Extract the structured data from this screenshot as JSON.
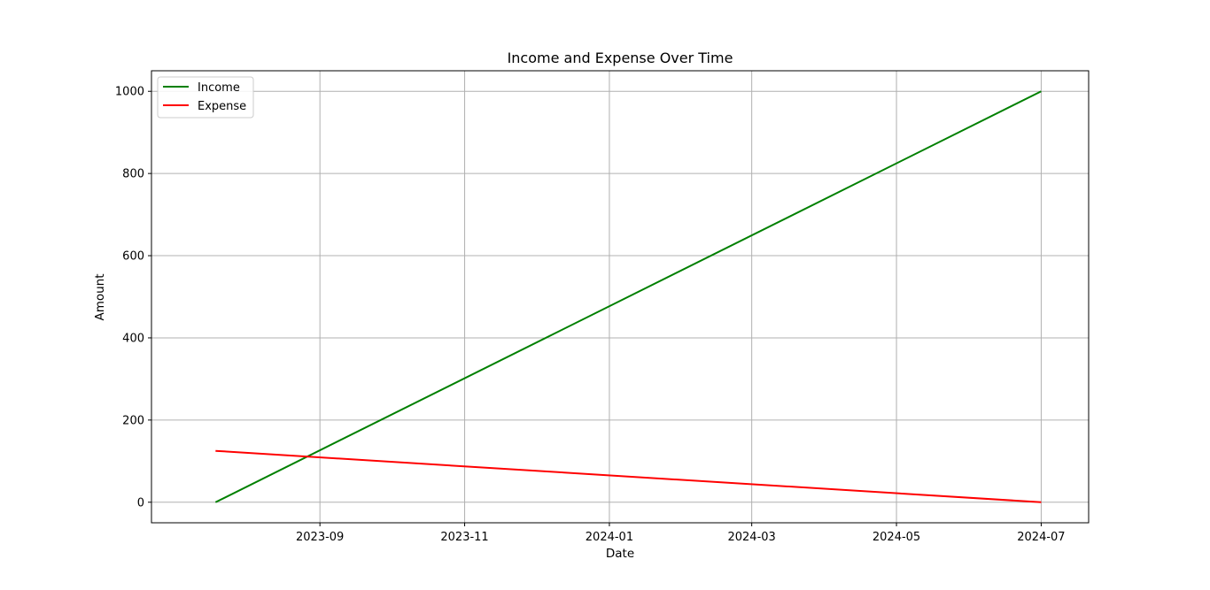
{
  "chart_data": {
    "type": "line",
    "title": "Income and Expense Over Time",
    "xlabel": "Date",
    "ylabel": "Amount",
    "x_type": "date",
    "xlim": [
      "2023-06-22",
      "2024-07-21"
    ],
    "ylim": [
      -50,
      1050
    ],
    "x": [
      "2023-07-19",
      "2024-07-01"
    ],
    "series": [
      {
        "name": "Income",
        "color": "#008000",
        "values": [
          0,
          1000
        ]
      },
      {
        "name": "Expense",
        "color": "#ff0000",
        "values": [
          125,
          0
        ]
      }
    ],
    "x_ticks": [
      {
        "date": "2023-09-01",
        "label": "2023-09"
      },
      {
        "date": "2023-11-01",
        "label": "2023-11"
      },
      {
        "date": "2024-01-01",
        "label": "2024-01"
      },
      {
        "date": "2024-03-01",
        "label": "2024-03"
      },
      {
        "date": "2024-05-01",
        "label": "2024-05"
      },
      {
        "date": "2024-07-01",
        "label": "2024-07"
      }
    ],
    "y_ticks": [
      0,
      200,
      400,
      600,
      800,
      1000
    ],
    "grid": true,
    "legend": {
      "position": "upper-left"
    }
  }
}
